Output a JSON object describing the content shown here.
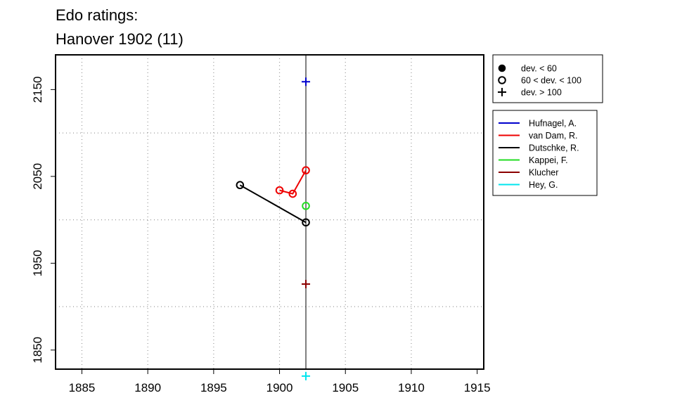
{
  "chart_data": {
    "type": "line",
    "title_lines": [
      "Edo ratings:",
      "Hanover 1902 (11)"
    ],
    "xlim": [
      1883,
      1915.5
    ],
    "ylim": [
      1828,
      2190
    ],
    "x_ticks": [
      1885,
      1890,
      1895,
      1900,
      1905,
      1910,
      1915
    ],
    "y_ticks": [
      1850,
      1950,
      2050,
      2150
    ],
    "x_grid": [
      1885,
      1890,
      1895,
      1900,
      1905,
      1910
    ],
    "y_grid": [
      1900,
      2000,
      2100
    ],
    "vline_x": 1902,
    "grid": true,
    "marker_legend": [
      {
        "marker": "dot",
        "label": "dev. < 60"
      },
      {
        "marker": "circle",
        "label": "60 < dev. < 100"
      },
      {
        "marker": "plus",
        "label": "dev. > 100"
      }
    ],
    "series": [
      {
        "name": "Hufnagel, A.",
        "color": "#0000CD",
        "points": [
          {
            "x": 1902,
            "y": 2159,
            "marker": "plus"
          }
        ]
      },
      {
        "name": "van Dam, R.",
        "color": "#EE0000",
        "points": [
          {
            "x": 1900,
            "y": 2034,
            "marker": "circle"
          },
          {
            "x": 1901,
            "y": 2030,
            "marker": "circle"
          },
          {
            "x": 1902,
            "y": 2057,
            "marker": "circle"
          }
        ]
      },
      {
        "name": "Dutschke, R.",
        "color": "#000000",
        "points": [
          {
            "x": 1897,
            "y": 2040,
            "marker": "circle"
          },
          {
            "x": 1902,
            "y": 1997,
            "marker": "circle"
          }
        ]
      },
      {
        "name": "Kappei, F.",
        "color": "#22DD22",
        "points": [
          {
            "x": 1902,
            "y": 2016,
            "marker": "circle"
          }
        ]
      },
      {
        "name": "Klucher",
        "color": "#8B0000",
        "points": [
          {
            "x": 1902,
            "y": 1926,
            "marker": "plus"
          }
        ]
      },
      {
        "name": "Hey, G.",
        "color": "#00E5EE",
        "points": [
          {
            "x": 1902,
            "y": 1820,
            "marker": "plus"
          }
        ]
      }
    ]
  }
}
